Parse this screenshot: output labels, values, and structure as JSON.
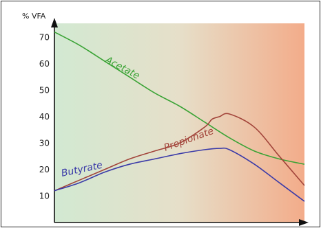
{
  "chart_data": {
    "type": "line",
    "ylabel": "% VFA",
    "xlabel": "",
    "ylim": [
      0,
      75
    ],
    "yticks": [
      10,
      20,
      30,
      40,
      50,
      60,
      70
    ],
    "x_range": [
      0,
      100
    ],
    "grid": false,
    "series": [
      {
        "name": "Acetate",
        "color": "#3aa335",
        "x": [
          0,
          10,
          20,
          30,
          40,
          50,
          60,
          70,
          80,
          90,
          100
        ],
        "y": [
          72,
          67,
          61,
          55,
          49,
          44,
          38,
          32,
          27,
          24,
          22
        ]
      },
      {
        "name": "Propionate",
        "color": "#a2443a",
        "x": [
          0,
          10,
          20,
          30,
          40,
          50,
          60,
          63,
          66,
          70,
          80,
          90,
          100
        ],
        "y": [
          12,
          16,
          20,
          24,
          27,
          30,
          36,
          39,
          40,
          41,
          36,
          25,
          14
        ]
      },
      {
        "name": "Butyrate",
        "color": "#3a3aa8",
        "x": [
          0,
          10,
          20,
          30,
          40,
          50,
          60,
          66,
          70,
          80,
          90,
          100
        ],
        "y": [
          12,
          15,
          19,
          22,
          24,
          26,
          27.5,
          28,
          27.5,
          22,
          15,
          8
        ]
      }
    ]
  }
}
